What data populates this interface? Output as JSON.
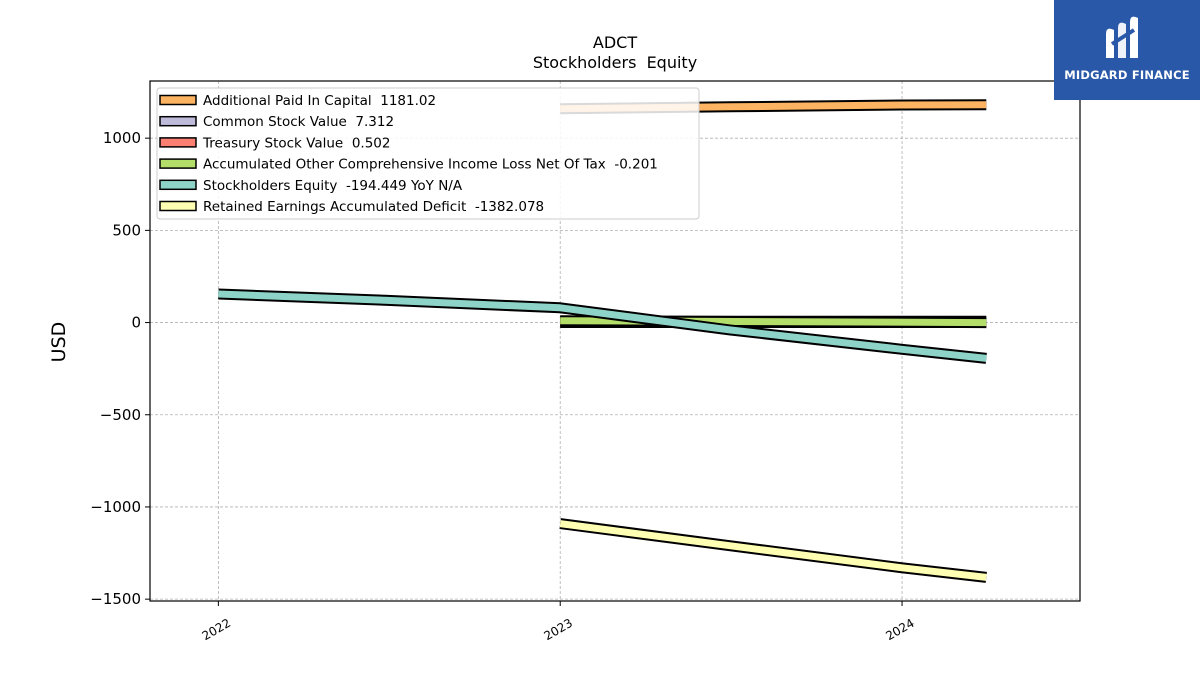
{
  "chart_data": {
    "type": "line",
    "title": "ADCT",
    "subtitle": "Stockholders  Equity",
    "ylabel": "USD",
    "xlabel": "",
    "xlim": [
      "2021-10-20",
      "2024-07-09"
    ],
    "ylim": [
      -1510,
      1310
    ],
    "yticks": [
      1000,
      500,
      0,
      -500,
      -1000,
      -1500
    ],
    "ytick_labels": [
      "1000",
      "500",
      "0",
      "−500",
      "−1000",
      "−1500"
    ],
    "xticks": [
      "2022-01-01",
      "2023-01-01",
      "2024-01-01"
    ],
    "xtick_labels": [
      "2022",
      "2023",
      "2024"
    ],
    "grid": true,
    "legend_position": "top-left",
    "series": [
      {
        "name": "Additional Paid In Capital  1181.02",
        "color": "#fdb462",
        "points": [
          [
            "2023-01-01",
            1160
          ],
          [
            "2023-07-01",
            1170
          ],
          [
            "2024-01-01",
            1180
          ],
          [
            "2024-03-31",
            1181.02
          ]
        ]
      },
      {
        "name": "Common Stock Value  7.312",
        "color": "#bebada",
        "points": [
          [
            "2023-01-01",
            7
          ],
          [
            "2024-03-31",
            7.312
          ]
        ]
      },
      {
        "name": "Treasury Stock Value  0.502",
        "color": "#fb8072",
        "points": [
          [
            "2023-01-01",
            0.5
          ],
          [
            "2024-03-31",
            0.502
          ]
        ]
      },
      {
        "name": "Accumulated Other Comprehensive Income Loss Net Of Tax  -0.201",
        "color": "#b3de69",
        "points": [
          [
            "2023-01-01",
            10
          ],
          [
            "2024-03-31",
            -0.201
          ]
        ]
      },
      {
        "name": "Stockholders Equity  -194.449 YoY N/A",
        "color": "#8dd3c7",
        "points": [
          [
            "2022-01-01",
            155
          ],
          [
            "2022-07-01",
            120
          ],
          [
            "2023-01-01",
            80
          ],
          [
            "2023-07-01",
            -40
          ],
          [
            "2024-01-01",
            -145
          ],
          [
            "2024-03-31",
            -194.449
          ]
        ]
      },
      {
        "name": "Retained Earnings Accumulated Deficit  -1382.078",
        "color": "#ffffb3",
        "points": [
          [
            "2023-01-01",
            -1090
          ],
          [
            "2023-07-01",
            -1210
          ],
          [
            "2024-01-01",
            -1330
          ],
          [
            "2024-03-31",
            -1382.078
          ]
        ]
      }
    ]
  },
  "logo": {
    "text": "MIDGARD FINANCE"
  }
}
